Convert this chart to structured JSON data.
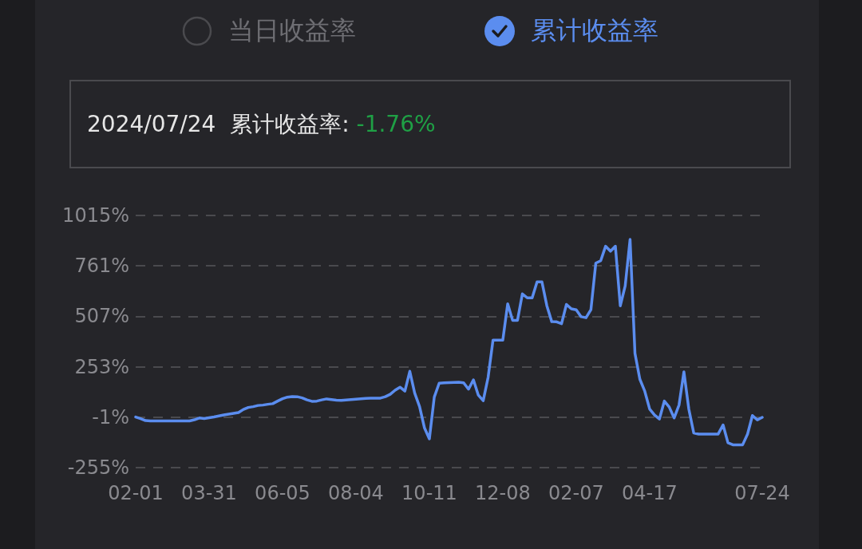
{
  "chart_data": {
    "type": "line",
    "annotations": [
      "当日收益率",
      "累计收益率",
      "2024/07/24  累计收益率: ",
      "-1.76%"
    ],
    "categories": [
      "02-01",
      null,
      null,
      null,
      null,
      null,
      null,
      null,
      null,
      null,
      null,
      null,
      null,
      null,
      null,
      "03-31",
      null,
      null,
      null,
      null,
      null,
      null,
      null,
      null,
      null,
      null,
      null,
      null,
      null,
      null,
      "06-05",
      null,
      null,
      null,
      null,
      null,
      null,
      null,
      null,
      null,
      null,
      null,
      null,
      null,
      null,
      "08-04",
      null,
      null,
      null,
      null,
      null,
      null,
      null,
      null,
      null,
      null,
      null,
      null,
      null,
      null,
      "10-11",
      null,
      null,
      null,
      null,
      null,
      null,
      null,
      null,
      null,
      null,
      null,
      null,
      null,
      null,
      "12-08",
      null,
      null,
      null,
      null,
      null,
      null,
      null,
      null,
      null,
      null,
      null,
      null,
      null,
      null,
      "02-07",
      null,
      null,
      null,
      null,
      null,
      null,
      null,
      null,
      null,
      null,
      null,
      null,
      null,
      null,
      "04-17",
      null,
      null,
      null,
      null,
      null,
      null,
      null,
      null,
      null,
      null,
      null,
      null,
      null,
      null,
      null,
      null,
      null,
      null,
      null,
      null,
      null,
      null,
      "07-24"
    ],
    "series": [
      {
        "color": "#5b8def",
        "values": [
          0,
          -8,
          -18,
          -20,
          -20,
          -20,
          -20,
          -20,
          -20,
          -20,
          -20,
          -20,
          -14,
          -5,
          -8,
          -4,
          0,
          5,
          10,
          14,
          18,
          22,
          38,
          48,
          52,
          58,
          60,
          64,
          67,
          80,
          92,
          100,
          103,
          102,
          96,
          86,
          79,
          80,
          86,
          91,
          88,
          85,
          84,
          86,
          88,
          90,
          92,
          94,
          95,
          95,
          95,
          102,
          114,
          135,
          150,
          130,
          230,
          120,
          52,
          -55,
          -110,
          100,
          170,
          172,
          173,
          174,
          175,
          172,
          140,
          187,
          110,
          82,
          200,
          387,
          387,
          387,
          570,
          487,
          487,
          620,
          600,
          600,
          680,
          680,
          560,
          480,
          479,
          470,
          567,
          545,
          540,
          505,
          500,
          540,
          775,
          787,
          860,
          835,
          860,
          560,
          660,
          894,
          320,
          190,
          130,
          40,
          10,
          -10,
          80,
          50,
          -5,
          60,
          227,
          40,
          -80,
          -86,
          -86,
          -86,
          -86,
          -86,
          -40,
          -130,
          -140,
          -140,
          -140,
          -86,
          7,
          -15,
          -2
        ]
      }
    ],
    "ylim": [
      -255,
      1015
    ],
    "yticks": [
      {
        "value": -255,
        "label": "-255%"
      },
      {
        "value": -1,
        "label": "-1%"
      },
      {
        "value": 253,
        "label": "253%"
      },
      {
        "value": 507,
        "label": "507%"
      },
      {
        "value": 761,
        "label": "761%"
      },
      {
        "value": 1015,
        "label": "1015%"
      }
    ],
    "grid": "y",
    "marker": "none",
    "line_style": "solid"
  }
}
